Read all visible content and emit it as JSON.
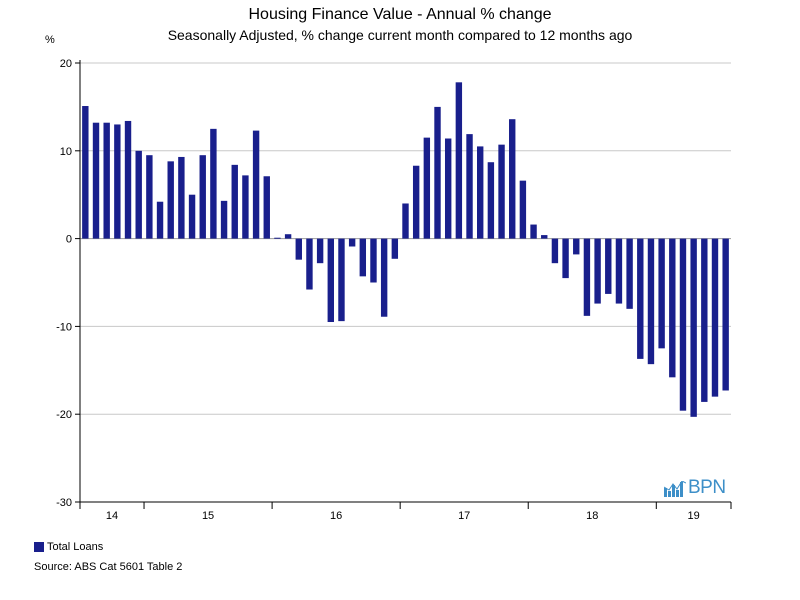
{
  "chart_data": {
    "type": "bar",
    "title": "Housing Finance Value - Annual % change",
    "subtitle": "Seasonally Adjusted, % change current month compared to 12 months ago",
    "ylabel": "%",
    "ylim": [
      -30,
      20
    ],
    "yticks": [
      20,
      10,
      0,
      -10,
      -20,
      -30
    ],
    "x_year_labels": [
      "14",
      "15",
      "16",
      "17",
      "18",
      "19"
    ],
    "series": [
      {
        "name": "Total Loans",
        "color": "#191f8c",
        "values": [
          15.1,
          13.2,
          13.2,
          13.0,
          13.4,
          10.0,
          9.5,
          4.2,
          8.8,
          9.3,
          5.0,
          9.5,
          12.5,
          4.3,
          8.4,
          7.2,
          12.3,
          7.1,
          0.1,
          0.5,
          -2.4,
          -5.8,
          -2.8,
          -9.5,
          -9.4,
          -0.9,
          -4.3,
          -5.0,
          -8.9,
          -2.3,
          4.0,
          8.3,
          11.5,
          15.0,
          11.4,
          17.8,
          11.9,
          10.5,
          8.7,
          10.7,
          13.6,
          6.6,
          1.6,
          0.4,
          -2.8,
          -4.5,
          -1.8,
          -8.8,
          -7.4,
          -6.3,
          -7.4,
          -8.0,
          -13.7,
          -14.3,
          -12.5,
          -15.8,
          -19.6,
          -20.3,
          -18.6,
          -18.0,
          -17.3
        ]
      }
    ]
  },
  "legend": {
    "label": "Total Loans",
    "color": "#191f8c"
  },
  "source": "Source: ABS Cat 5601 Table 2",
  "logo": {
    "text": "BPN",
    "color": "#3d8fc8"
  }
}
